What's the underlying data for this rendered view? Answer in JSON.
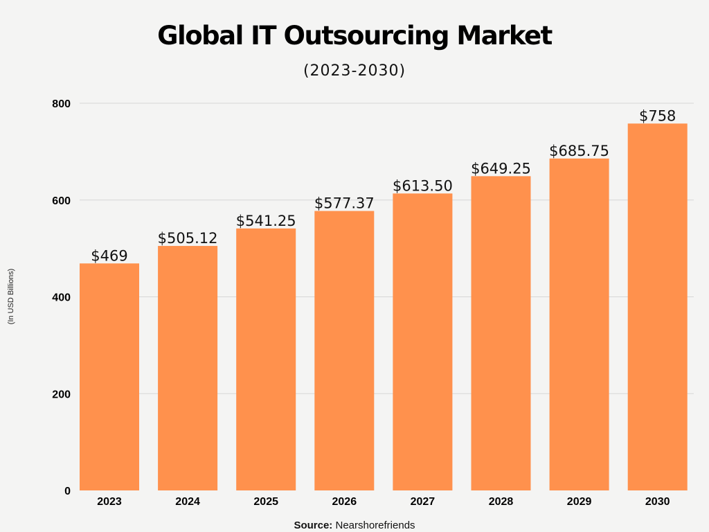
{
  "chart_data": {
    "type": "bar",
    "title": "Global IT Outsourcing Market",
    "subtitle": "(2023-2030)",
    "ylabel": "(In USD Billions)",
    "xlabel": "",
    "categories": [
      "2023",
      "2024",
      "2025",
      "2026",
      "2027",
      "2028",
      "2029",
      "2030"
    ],
    "values": [
      469,
      505.12,
      541.25,
      577.37,
      613.5,
      649.25,
      685.75,
      758
    ],
    "data_labels": [
      "$469",
      "$505.12",
      "$541.25",
      "$577.37",
      "$613.50",
      "$649.25",
      "$685.75",
      "$758"
    ],
    "ylim": [
      0,
      800
    ],
    "yticks": [
      0,
      200,
      400,
      600,
      800
    ],
    "grid": true,
    "bar_color": "#FF914D",
    "source_label": "Source:",
    "source_value": "Nearshorefriends"
  }
}
